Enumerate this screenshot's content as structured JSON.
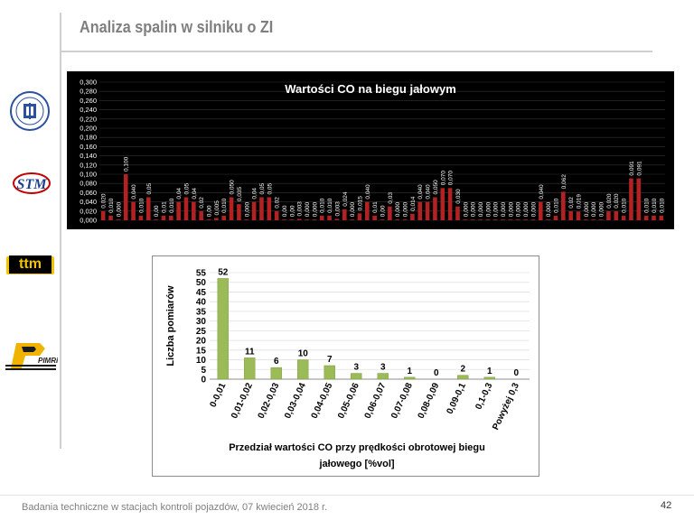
{
  "slide": {
    "title": "Analiza spalin w silniku o ZI",
    "footer": "Badania techniczne w stacjach kontroli pojazdów, 07 kwiecień 2018 r.",
    "page_number": "42"
  },
  "logos": {
    "university_text": "POLITECHNIKA",
    "stm_text": "STM",
    "ttm_text": "ttm",
    "pimrips_text": "PIMRiPS"
  },
  "chart_data": [
    {
      "type": "bar",
      "title": "Wartości CO na biegu jałowym",
      "ylim": [
        0,
        0.3
      ],
      "yticks": [
        "0,000",
        "0,020",
        "0,040",
        "0,060",
        "0,080",
        "0,100",
        "0,120",
        "0,140",
        "0,160",
        "0,180",
        "0,200",
        "0,220",
        "0,240",
        "0,260",
        "0,280",
        "0,300"
      ],
      "values": [
        0.02,
        0.01,
        0.0,
        0.1,
        0.04,
        0.01,
        0.05,
        0.0,
        0.01,
        0.01,
        0.04,
        0.05,
        0.04,
        0.02,
        0.0,
        0.005,
        0.01,
        0.05,
        0.035,
        0.0,
        0.04,
        0.05,
        0.05,
        0.02,
        0.0,
        0.0,
        0.003,
        0.0,
        0.0,
        0.01,
        0.01,
        0.003,
        0.024,
        0.0,
        0.015,
        0.04,
        0.01,
        0.0,
        0.03,
        0.0,
        0.0,
        0.014,
        0.04,
        0.04,
        0.05,
        0.07,
        0.07,
        0.03,
        0.0,
        0.0,
        0.0,
        0.0,
        0.0,
        0.0,
        0.0,
        0.0,
        0.0,
        0.0,
        0.04,
        0.0,
        0.01,
        0.062,
        0.02,
        0.019,
        0.0,
        0.0,
        0.0,
        0.02,
        0.02,
        0.01,
        0.091,
        0.091,
        0.01,
        0.01,
        0.01
      ],
      "labels": [
        "0,020",
        "0,010",
        "0,000",
        "0,100",
        "0,040",
        "0,010",
        "0,05",
        "0,00",
        "0,01",
        "0,010",
        "0,04",
        "0,05",
        "0,04",
        "0,02",
        "0,00",
        "0,005",
        "0,010",
        "0,050",
        "0,035",
        "0,000",
        "0,04",
        "0,05",
        "0,05",
        "0,02",
        "0,00",
        "0,00",
        "0,003",
        "0,000",
        "0,000",
        "0,010",
        "0,010",
        "0,003",
        "0,024",
        "0,000",
        "0,015",
        "0,040",
        "0,01",
        "0,00",
        "0,03",
        "0,000",
        "0,000",
        "0,014",
        "0,040",
        "0,040",
        "0,050",
        "0,070",
        "0,070",
        "0,030",
        "0,000",
        "0,000",
        "0,000",
        "0,000",
        "0,000",
        "0,000",
        "0,000",
        "0,000",
        "0,000",
        "0,000",
        "0,040",
        "0,000",
        "0,010",
        "0,062",
        "0,02",
        "0,019",
        "0,000",
        "0,000",
        "0,000",
        "0,020",
        "0,020",
        "0,010",
        "0,091",
        "0,091",
        "0,010",
        "0,010",
        "0,010"
      ],
      "colors": {
        "bar": "#b22222",
        "background": "#000000",
        "text": "#ffffff",
        "grid": "#333333"
      }
    },
    {
      "type": "bar",
      "categories": [
        "0-0,01",
        "0,01-0,02",
        "0,02-0,03",
        "0,03-0,04",
        "0,04-0,05",
        "0,05-0,06",
        "0,06-0,07",
        "0,07-0,08",
        "0,08-0,09",
        "0,09-0,1",
        "0,1-0,3",
        "Powyżej 0,3"
      ],
      "values": [
        52,
        11,
        6,
        10,
        7,
        3,
        3,
        1,
        0,
        2,
        1,
        0
      ],
      "ylabel": "Liczba pomiarów",
      "xlabel_line1": "Przedział wartości CO przy prędkości obrotowej  biegu",
      "xlabel_line2": "jałowego [%vol]",
      "ylim": [
        0,
        55
      ],
      "yticks": [
        0,
        5,
        10,
        15,
        20,
        25,
        30,
        35,
        40,
        45,
        50,
        55
      ],
      "colors": {
        "bar": "#9bbb59",
        "bar_edge": "#7a9a3a",
        "background": "#ffffff",
        "grid": "#e0e0e0"
      }
    }
  ]
}
